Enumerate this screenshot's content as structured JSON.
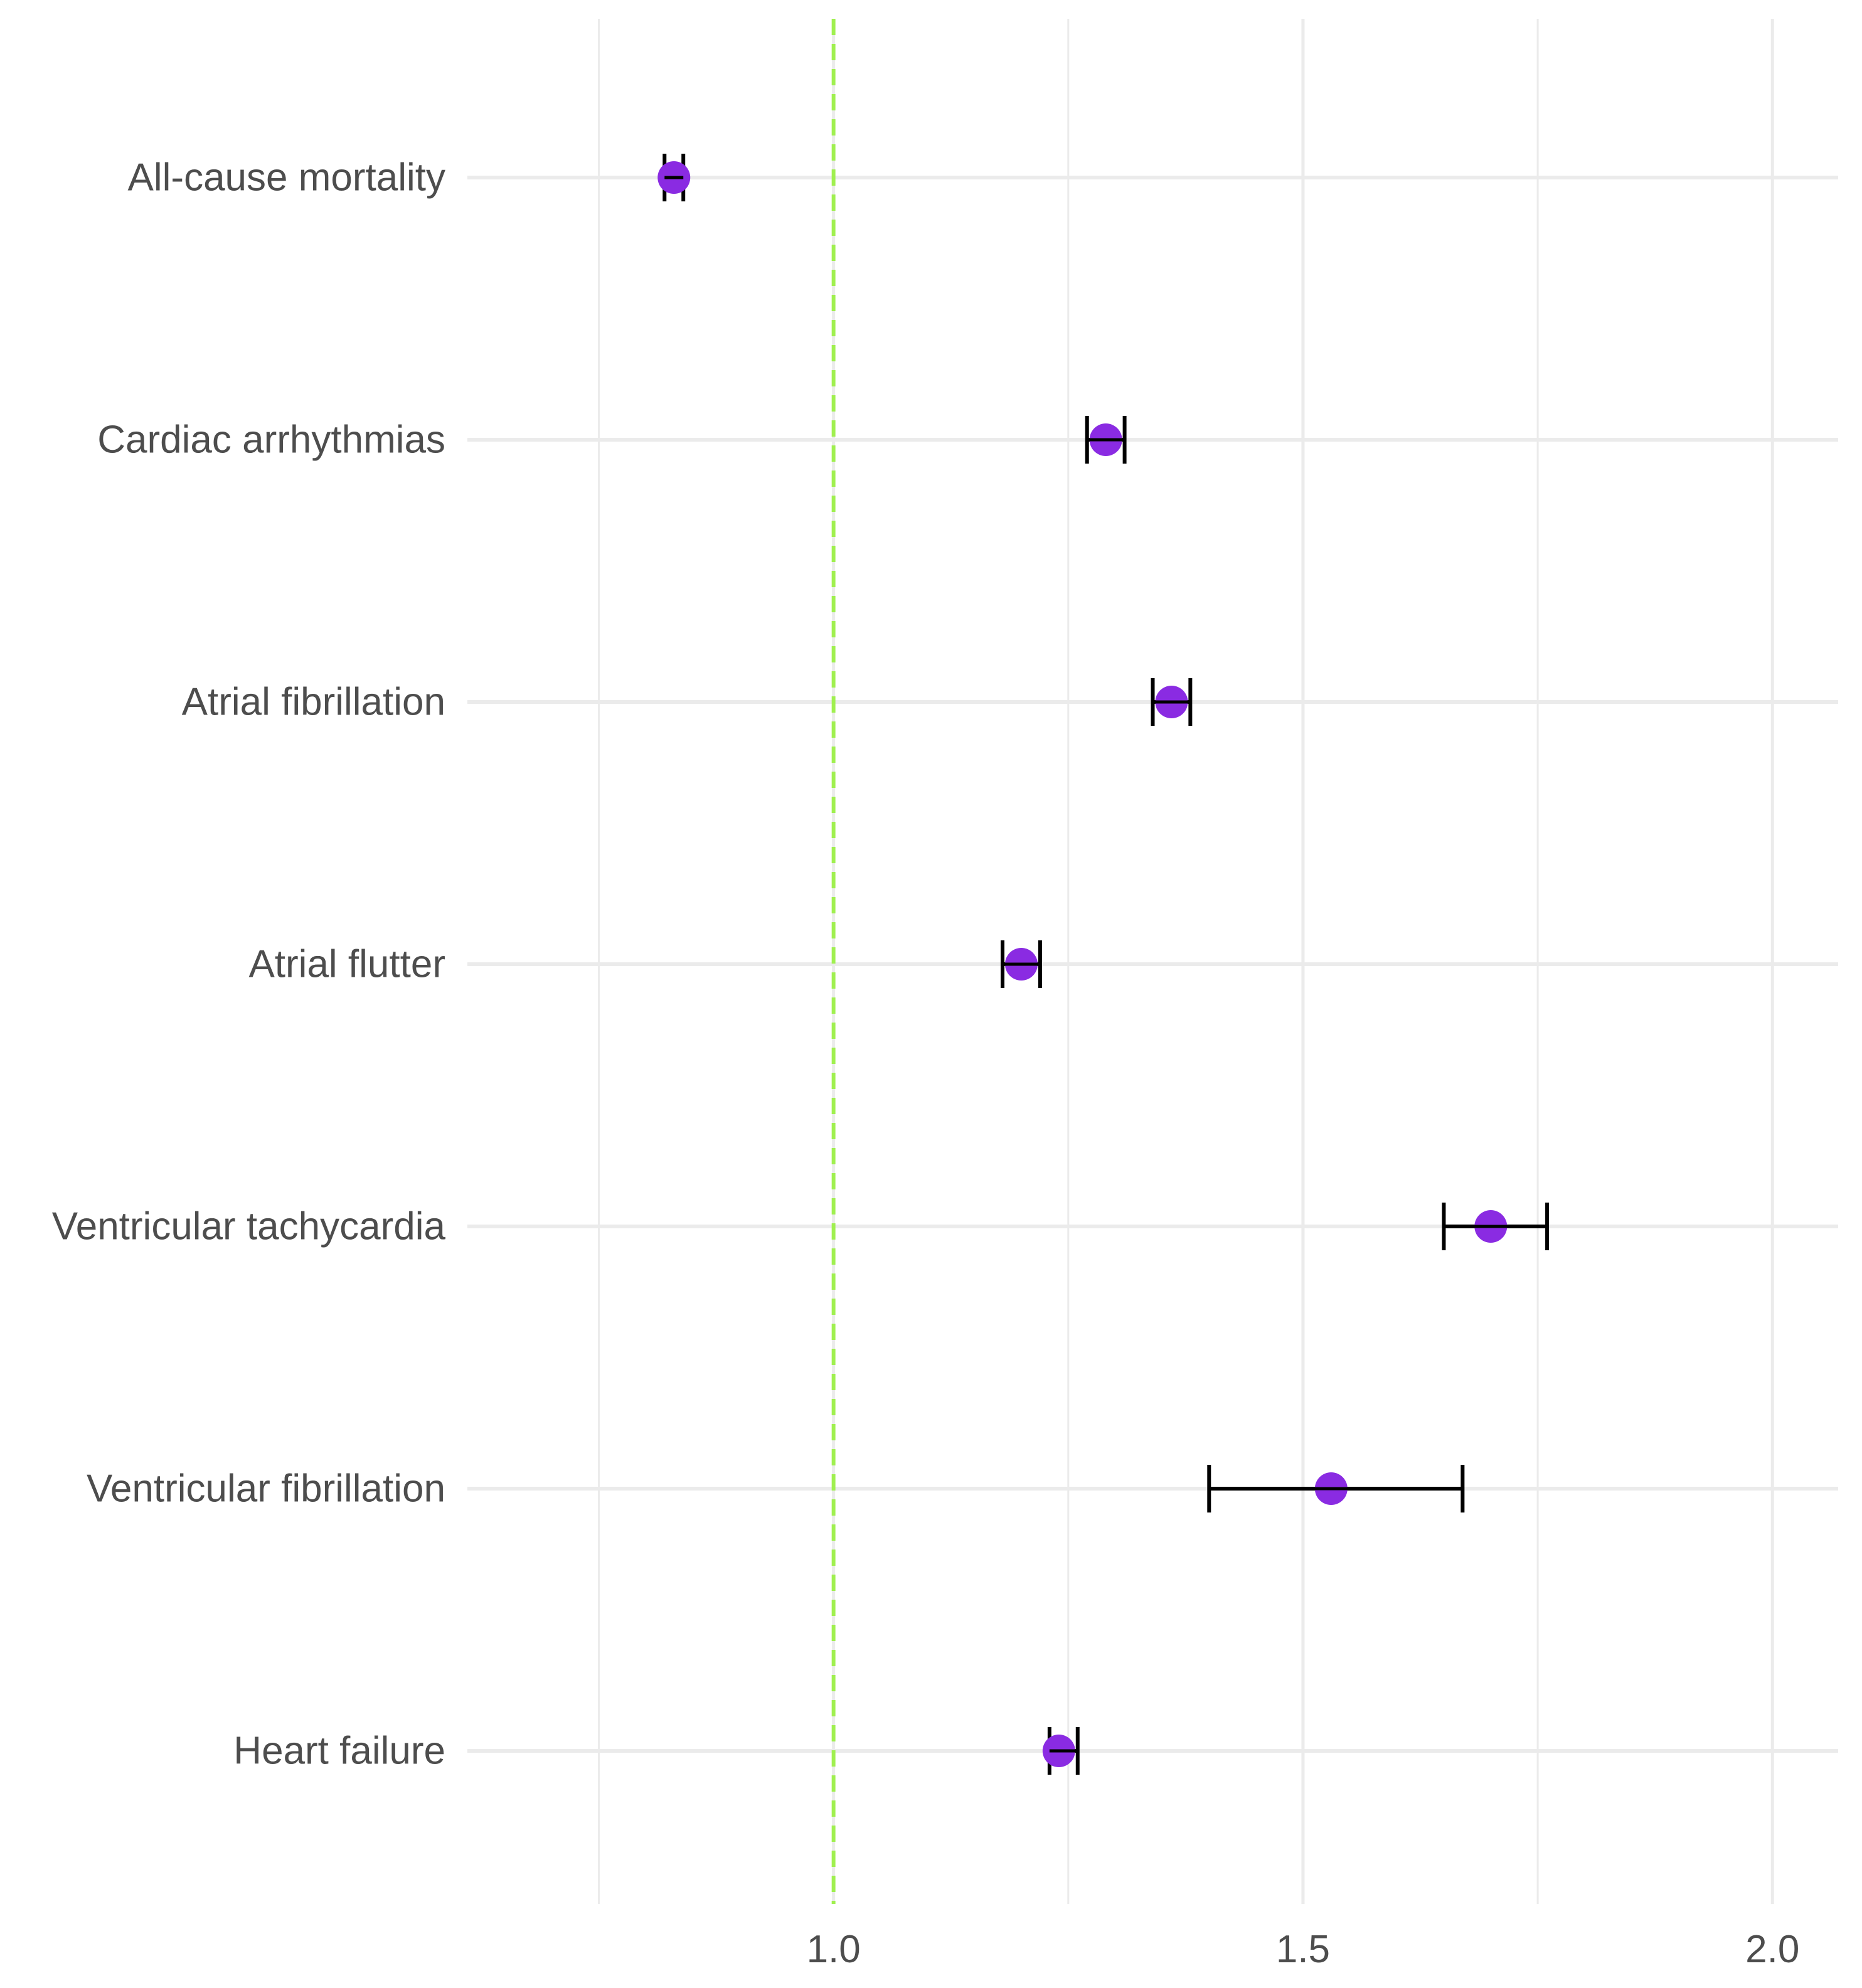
{
  "chart_data": {
    "type": "scatter",
    "title": "",
    "xlabel": "",
    "ylabel": "",
    "categories": [
      "All-cause mortality",
      "Cardiac arrhythmias",
      "Atrial fibrillation",
      "Atrial flutter",
      "Ventricular tachycardia",
      "Ventricular fibrillation",
      "Heart failure"
    ],
    "estimates": [
      0.83,
      1.29,
      1.36,
      1.2,
      1.7,
      1.53,
      1.24
    ],
    "ci_lower": [
      0.82,
      1.27,
      1.34,
      1.18,
      1.65,
      1.4,
      1.23
    ],
    "ci_upper": [
      0.84,
      1.31,
      1.38,
      1.22,
      1.76,
      1.67,
      1.26
    ],
    "xlim": [
      0.61,
      2.07
    ],
    "x_major_ticks": [
      1.0,
      1.5,
      2.0
    ],
    "x_tick_labels": [
      "1.0",
      "1.5",
      "2.0"
    ],
    "x_minor_ticks": [
      0.75,
      1.25,
      1.75
    ],
    "reference_line": 1.0,
    "grid": true,
    "colors": {
      "point": "#8a2be2",
      "error_bar": "#000000",
      "reference_line": "#a0f050",
      "grid": "#ebebeb",
      "text": "#4d4d4d"
    }
  }
}
